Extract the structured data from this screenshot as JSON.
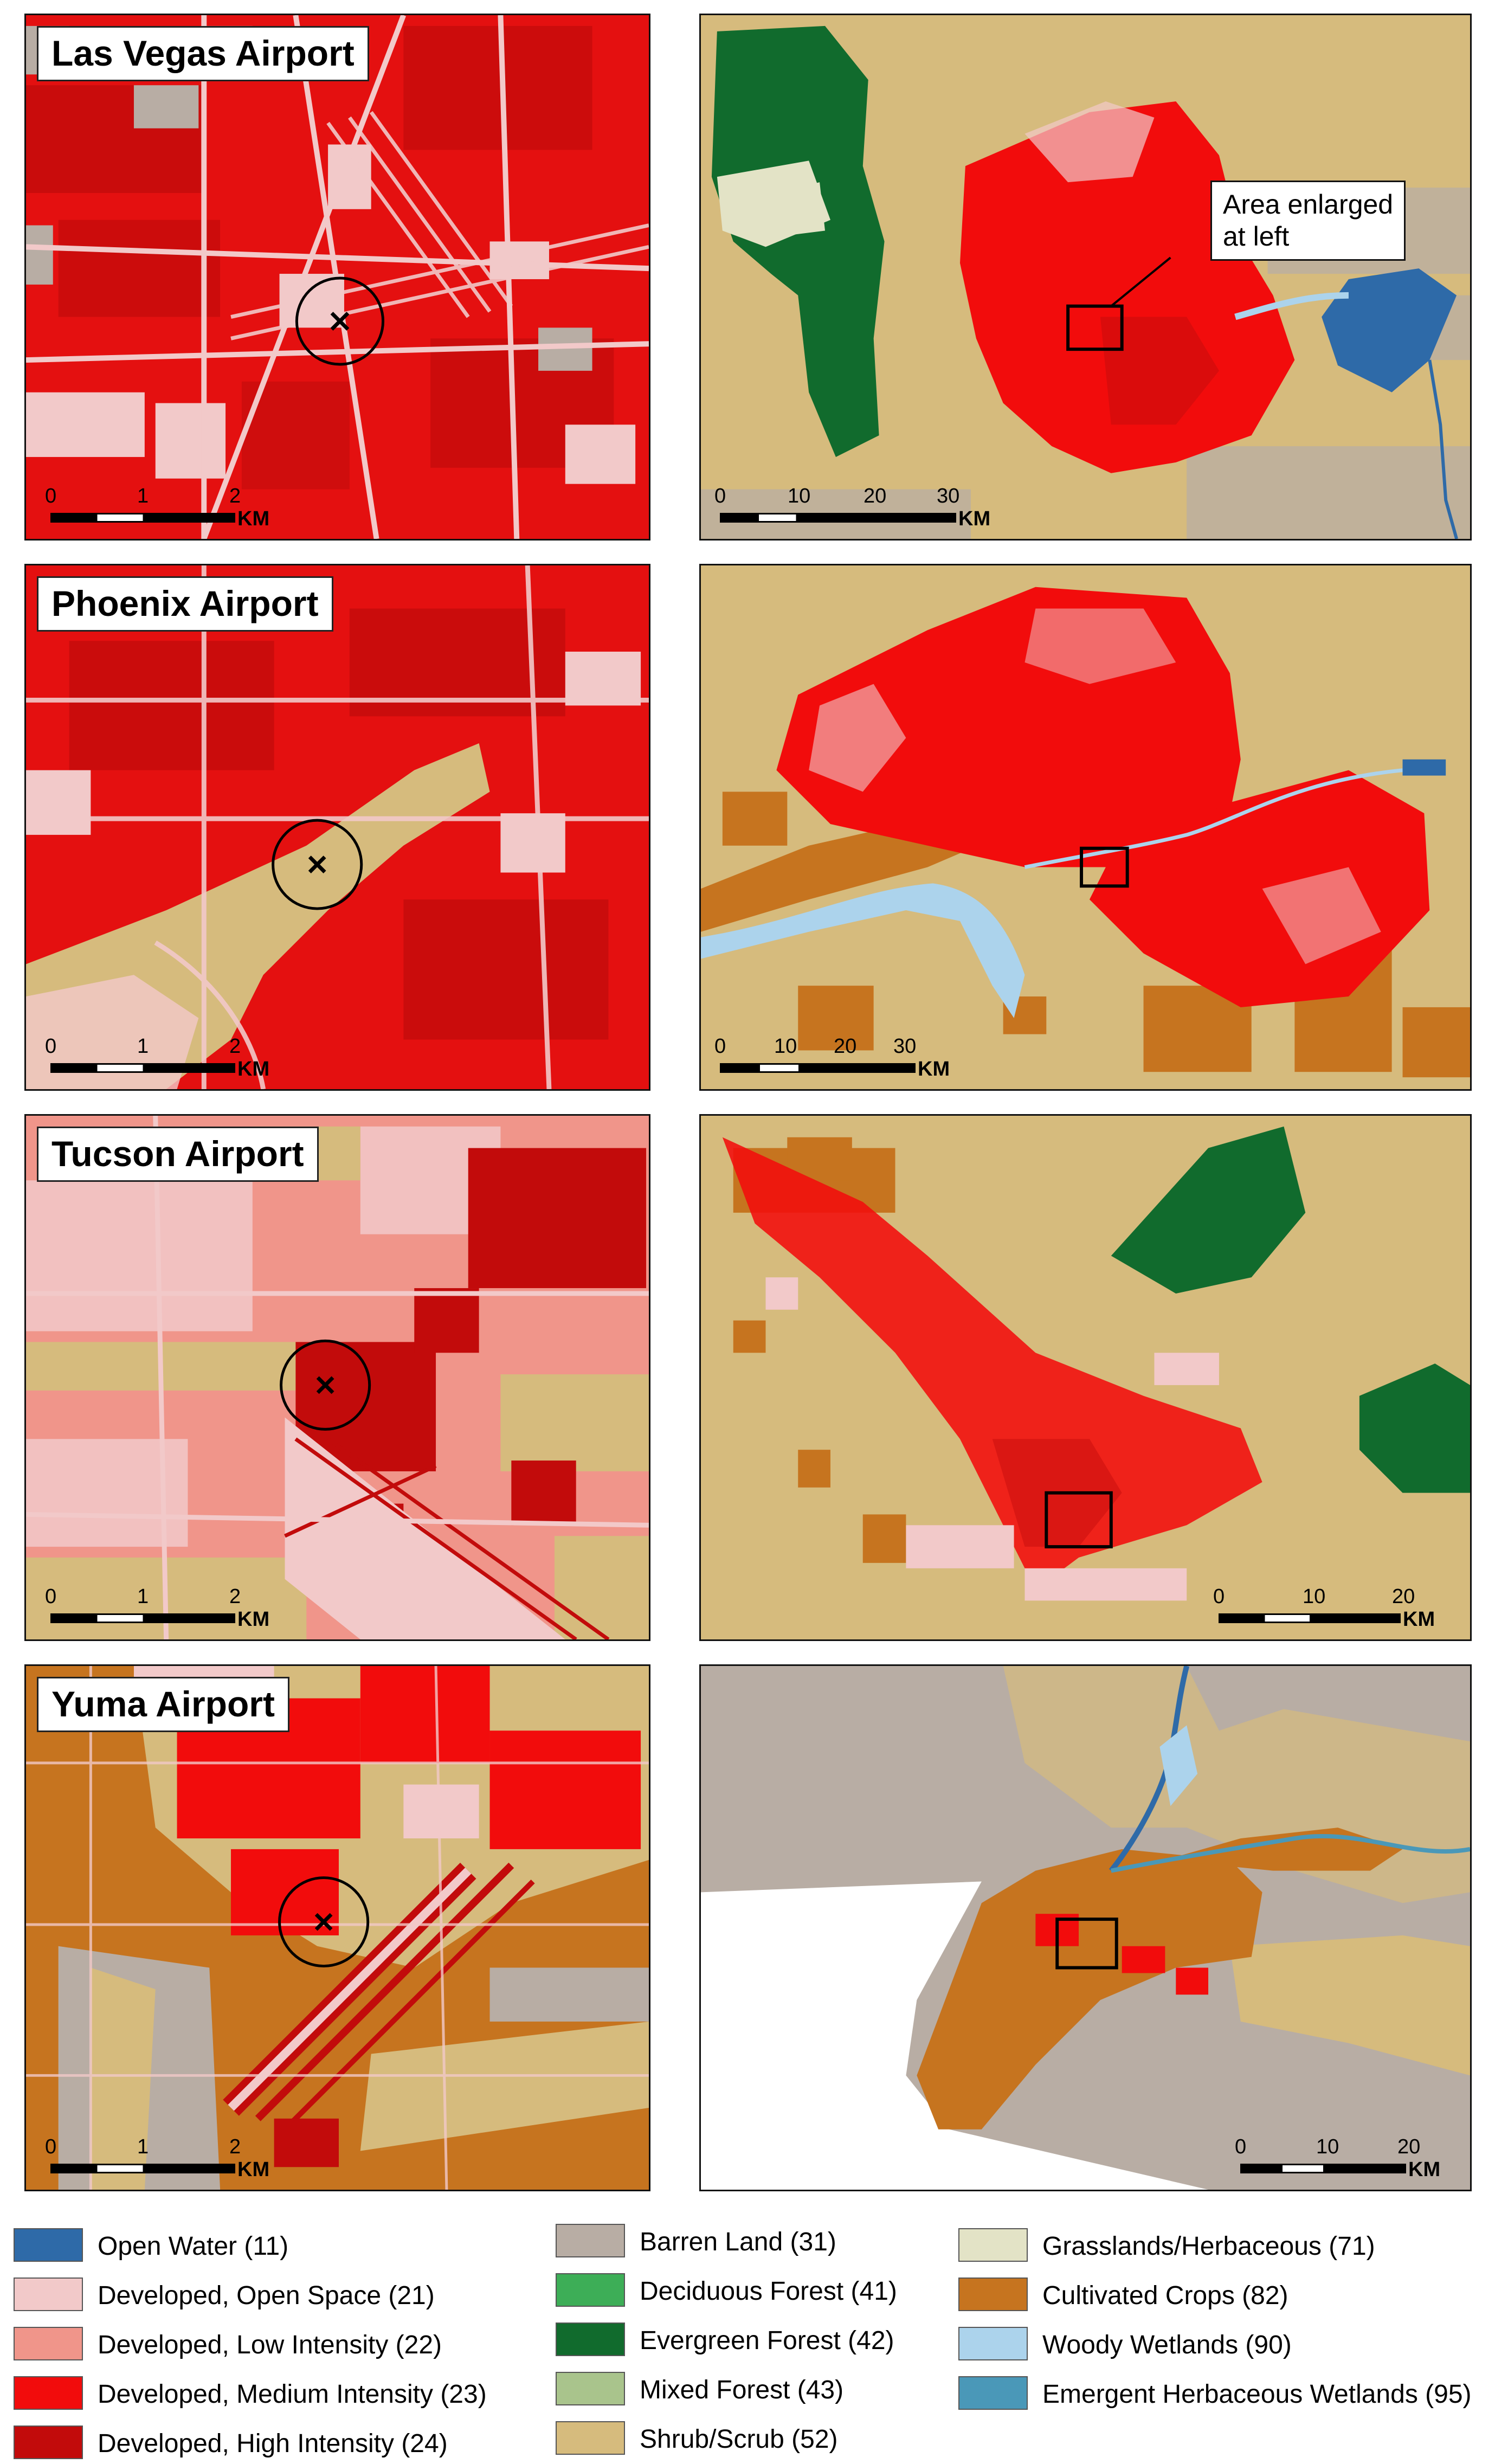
{
  "panels": {
    "lasvegas": {
      "title": "Las Vegas Airport",
      "scale_left": {
        "ticks": [
          "0",
          "1",
          "2"
        ],
        "unit": "KM"
      },
      "scale_right": {
        "ticks": [
          "0",
          "10",
          "20",
          "30"
        ],
        "unit": "KM"
      },
      "callout": "Area enlarged\nat left"
    },
    "phoenix": {
      "title": "Phoenix Airport",
      "scale_left": {
        "ticks": [
          "0",
          "1",
          "2"
        ],
        "unit": "KM"
      },
      "scale_right": {
        "ticks": [
          "0",
          "10",
          "20",
          "30"
        ],
        "unit": "KM"
      }
    },
    "tucson": {
      "title": "Tucson Airport",
      "scale_left": {
        "ticks": [
          "0",
          "1",
          "2"
        ],
        "unit": "KM"
      },
      "scale_right": {
        "ticks": [
          "0",
          "10",
          "20"
        ],
        "unit": "KM"
      }
    },
    "yuma": {
      "title": "Yuma Airport",
      "scale_left": {
        "ticks": [
          "0",
          "1",
          "2"
        ],
        "unit": "KM"
      },
      "scale_right": {
        "ticks": [
          "0",
          "10",
          "20"
        ],
        "unit": "KM"
      }
    }
  },
  "legend": [
    {
      "label": "Open Water (11)",
      "color": "#2e6aa8"
    },
    {
      "label": "Developed, Open Space (21)",
      "color": "#f2c9c9"
    },
    {
      "label": "Developed, Low Intensity (22)",
      "color": "#f0958a"
    },
    {
      "label": "Developed, Medium Intensity (23)",
      "color": "#f20c0c"
    },
    {
      "label": "Developed, High Intensity (24)",
      "color": "#c20b0b"
    },
    {
      "label": "Barren Land (31)",
      "color": "#b8ada4"
    },
    {
      "label": "Deciduous Forest (41)",
      "color": "#3dae57"
    },
    {
      "label": "Evergreen Forest (42)",
      "color": "#116b2d"
    },
    {
      "label": "Mixed Forest (43)",
      "color": "#a9c48c"
    },
    {
      "label": "Shrub/Scrub (52)",
      "color": "#d6bb7d"
    },
    {
      "label": "Grasslands/Herbaceous (71)",
      "color": "#e3e3c6"
    },
    {
      "label": "Cultivated Crops (82)",
      "color": "#c6741f"
    },
    {
      "label": "Woody Wetlands (90)",
      "color": "#acd3ec"
    },
    {
      "label": "Emergent Herbaceous Wetlands (95)",
      "color": "#4a98b8"
    }
  ]
}
